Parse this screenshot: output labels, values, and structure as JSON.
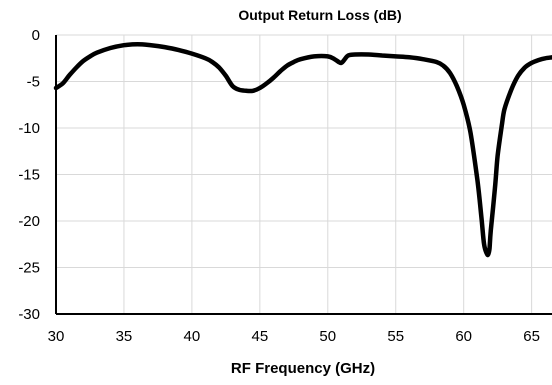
{
  "chart_data": {
    "type": "line",
    "title": "Output Return Loss (dB)",
    "xlabel": "RF Frequency (GHz)",
    "ylabel": "",
    "xlim": [
      30,
      66.5
    ],
    "ylim": [
      -30,
      0
    ],
    "xticks": [
      30,
      35,
      40,
      45,
      50,
      55,
      60,
      65
    ],
    "yticks": [
      0,
      -5,
      -10,
      -15,
      -20,
      -25,
      -30
    ],
    "xtick_labels": [
      "30",
      "35",
      "40",
      "45",
      "50",
      "55",
      "60",
      "65"
    ],
    "ytick_labels": [
      "0",
      "-5",
      "-10",
      "-15",
      "-20",
      "-25",
      "-30"
    ],
    "grid": {
      "horizontal": true,
      "vertical": true
    },
    "legend": "none",
    "series": [
      {
        "color": "#000000",
        "x": [
          30,
          30.5,
          31,
          31.5,
          32,
          32.5,
          33,
          34,
          35,
          36,
          37,
          38,
          39,
          40,
          41,
          41.5,
          42,
          42.5,
          43,
          43.5,
          44,
          44.5,
          45,
          45.5,
          46,
          46.5,
          47,
          47.5,
          48,
          49,
          50,
          50.5,
          50.8,
          51,
          51.2,
          51.5,
          52,
          53,
          54,
          55,
          56,
          57,
          58,
          58.5,
          59,
          59.5,
          60,
          60.5,
          61,
          61.3,
          61.5,
          61.7,
          61.8,
          61.9,
          62,
          62.3,
          62.5,
          62.8,
          63,
          63.5,
          64,
          64.5,
          65,
          65.5,
          66,
          66.5
        ],
        "y": [
          -5.7,
          -5.2,
          -4.3,
          -3.5,
          -2.8,
          -2.3,
          -1.9,
          -1.4,
          -1.1,
          -1.0,
          -1.1,
          -1.3,
          -1.6,
          -2.0,
          -2.5,
          -2.9,
          -3.5,
          -4.4,
          -5.5,
          -5.9,
          -6.0,
          -6.0,
          -5.7,
          -5.2,
          -4.6,
          -3.9,
          -3.3,
          -2.9,
          -2.6,
          -2.3,
          -2.3,
          -2.6,
          -2.9,
          -3.0,
          -2.7,
          -2.2,
          -2.1,
          -2.1,
          -2.2,
          -2.3,
          -2.4,
          -2.6,
          -2.9,
          -3.3,
          -4.1,
          -5.5,
          -7.5,
          -10.5,
          -15.5,
          -19.5,
          -22.5,
          -23.5,
          -23.6,
          -23.0,
          -21.0,
          -16.5,
          -13.0,
          -9.8,
          -8.0,
          -5.9,
          -4.4,
          -3.5,
          -3.0,
          -2.7,
          -2.5,
          -2.4
        ]
      }
    ]
  }
}
